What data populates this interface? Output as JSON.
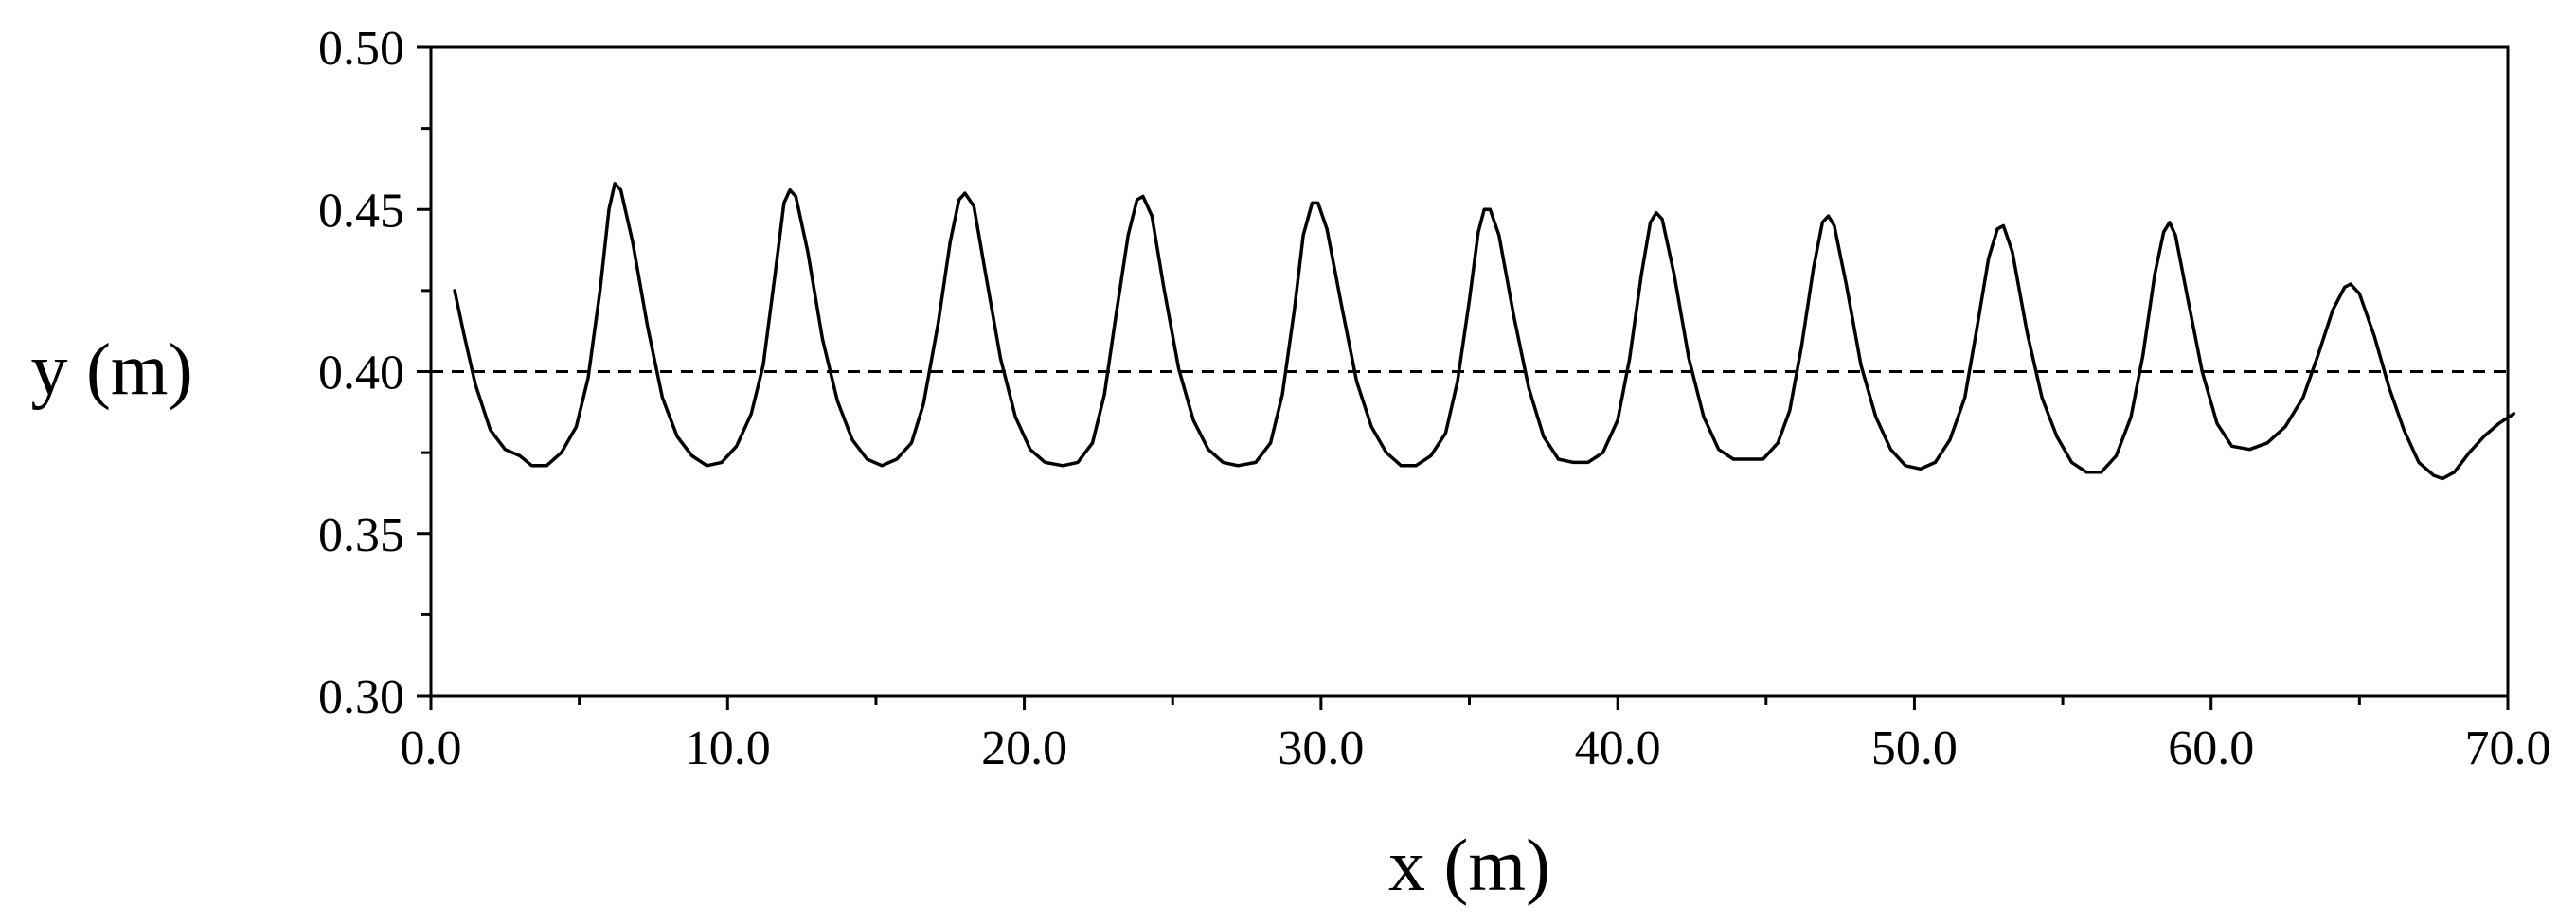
{
  "chart_data": {
    "type": "line",
    "xlabel": "x (m)",
    "ylabel": "y (m)",
    "xlim": [
      0,
      70
    ],
    "ylim": [
      0.3,
      0.5
    ],
    "x_ticks": [
      "0.0",
      "10.0",
      "20.0",
      "30.0",
      "40.0",
      "50.0",
      "60.0",
      "70.0"
    ],
    "y_ticks": [
      "0.30",
      "0.35",
      "0.40",
      "0.45",
      "0.50"
    ],
    "x_minor_step": 5,
    "y_minor_step": 0.025,
    "grid": false,
    "reference_line": {
      "y": 0.4,
      "style": "dashed"
    },
    "series": [
      {
        "style": "solid",
        "color": "#000000",
        "points": [
          [
            0.8,
            0.425
          ],
          [
            1.1,
            0.412
          ],
          [
            1.5,
            0.396
          ],
          [
            2.0,
            0.382
          ],
          [
            2.5,
            0.376
          ],
          [
            3.0,
            0.374
          ],
          [
            3.4,
            0.371
          ],
          [
            3.9,
            0.371
          ],
          [
            4.4,
            0.375
          ],
          [
            4.9,
            0.383
          ],
          [
            5.3,
            0.398
          ],
          [
            5.7,
            0.425
          ],
          [
            6.0,
            0.45
          ],
          [
            6.2,
            0.458
          ],
          [
            6.4,
            0.456
          ],
          [
            6.8,
            0.44
          ],
          [
            7.3,
            0.414
          ],
          [
            7.8,
            0.392
          ],
          [
            8.3,
            0.38
          ],
          [
            8.8,
            0.374
          ],
          [
            9.3,
            0.371
          ],
          [
            9.8,
            0.372
          ],
          [
            10.3,
            0.377
          ],
          [
            10.8,
            0.387
          ],
          [
            11.2,
            0.402
          ],
          [
            11.6,
            0.43
          ],
          [
            11.9,
            0.452
          ],
          [
            12.1,
            0.456
          ],
          [
            12.3,
            0.454
          ],
          [
            12.7,
            0.437
          ],
          [
            13.2,
            0.41
          ],
          [
            13.7,
            0.391
          ],
          [
            14.2,
            0.379
          ],
          [
            14.7,
            0.373
          ],
          [
            15.2,
            0.371
          ],
          [
            15.7,
            0.373
          ],
          [
            16.2,
            0.378
          ],
          [
            16.6,
            0.39
          ],
          [
            17.1,
            0.415
          ],
          [
            17.5,
            0.44
          ],
          [
            17.8,
            0.453
          ],
          [
            18.0,
            0.455
          ],
          [
            18.3,
            0.451
          ],
          [
            18.7,
            0.43
          ],
          [
            19.2,
            0.404
          ],
          [
            19.7,
            0.386
          ],
          [
            20.2,
            0.376
          ],
          [
            20.7,
            0.372
          ],
          [
            21.3,
            0.371
          ],
          [
            21.8,
            0.372
          ],
          [
            22.3,
            0.378
          ],
          [
            22.7,
            0.393
          ],
          [
            23.1,
            0.418
          ],
          [
            23.5,
            0.442
          ],
          [
            23.8,
            0.453
          ],
          [
            24.0,
            0.454
          ],
          [
            24.3,
            0.448
          ],
          [
            24.7,
            0.426
          ],
          [
            25.2,
            0.401
          ],
          [
            25.7,
            0.385
          ],
          [
            26.2,
            0.376
          ],
          [
            26.7,
            0.372
          ],
          [
            27.2,
            0.371
          ],
          [
            27.8,
            0.372
          ],
          [
            28.3,
            0.378
          ],
          [
            28.7,
            0.393
          ],
          [
            29.1,
            0.419
          ],
          [
            29.4,
            0.442
          ],
          [
            29.7,
            0.452
          ],
          [
            29.9,
            0.452
          ],
          [
            30.2,
            0.444
          ],
          [
            30.7,
            0.42
          ],
          [
            31.2,
            0.397
          ],
          [
            31.7,
            0.383
          ],
          [
            32.2,
            0.375
          ],
          [
            32.7,
            0.371
          ],
          [
            33.2,
            0.371
          ],
          [
            33.7,
            0.374
          ],
          [
            34.2,
            0.381
          ],
          [
            34.6,
            0.397
          ],
          [
            35.0,
            0.422
          ],
          [
            35.3,
            0.443
          ],
          [
            35.5,
            0.45
          ],
          [
            35.7,
            0.45
          ],
          [
            36.0,
            0.442
          ],
          [
            36.5,
            0.417
          ],
          [
            37.0,
            0.395
          ],
          [
            37.5,
            0.38
          ],
          [
            38.0,
            0.373
          ],
          [
            38.5,
            0.372
          ],
          [
            39.0,
            0.372
          ],
          [
            39.5,
            0.375
          ],
          [
            40.0,
            0.385
          ],
          [
            40.4,
            0.404
          ],
          [
            40.8,
            0.43
          ],
          [
            41.1,
            0.446
          ],
          [
            41.3,
            0.449
          ],
          [
            41.5,
            0.447
          ],
          [
            41.9,
            0.43
          ],
          [
            42.4,
            0.404
          ],
          [
            42.9,
            0.386
          ],
          [
            43.4,
            0.376
          ],
          [
            43.9,
            0.373
          ],
          [
            44.4,
            0.373
          ],
          [
            44.9,
            0.373
          ],
          [
            45.4,
            0.378
          ],
          [
            45.8,
            0.388
          ],
          [
            46.2,
            0.408
          ],
          [
            46.6,
            0.432
          ],
          [
            46.9,
            0.446
          ],
          [
            47.1,
            0.448
          ],
          [
            47.3,
            0.445
          ],
          [
            47.7,
            0.427
          ],
          [
            48.2,
            0.402
          ],
          [
            48.7,
            0.386
          ],
          [
            49.2,
            0.376
          ],
          [
            49.7,
            0.371
          ],
          [
            50.2,
            0.37
          ],
          [
            50.7,
            0.372
          ],
          [
            51.2,
            0.379
          ],
          [
            51.7,
            0.392
          ],
          [
            52.1,
            0.413
          ],
          [
            52.5,
            0.435
          ],
          [
            52.8,
            0.444
          ],
          [
            53.0,
            0.445
          ],
          [
            53.3,
            0.437
          ],
          [
            53.8,
            0.412
          ],
          [
            54.3,
            0.392
          ],
          [
            54.8,
            0.38
          ],
          [
            55.3,
            0.372
          ],
          [
            55.8,
            0.369
          ],
          [
            56.3,
            0.369
          ],
          [
            56.8,
            0.374
          ],
          [
            57.3,
            0.386
          ],
          [
            57.7,
            0.405
          ],
          [
            58.1,
            0.43
          ],
          [
            58.4,
            0.443
          ],
          [
            58.6,
            0.446
          ],
          [
            58.8,
            0.442
          ],
          [
            59.2,
            0.423
          ],
          [
            59.7,
            0.4
          ],
          [
            60.2,
            0.384
          ],
          [
            60.7,
            0.377
          ],
          [
            61.3,
            0.376
          ],
          [
            61.9,
            0.378
          ],
          [
            62.5,
            0.383
          ],
          [
            63.1,
            0.392
          ],
          [
            63.6,
            0.405
          ],
          [
            64.1,
            0.419
          ],
          [
            64.5,
            0.426
          ],
          [
            64.7,
            0.427
          ],
          [
            65.0,
            0.424
          ],
          [
            65.5,
            0.411
          ],
          [
            66.0,
            0.395
          ],
          [
            66.5,
            0.382
          ],
          [
            67.0,
            0.372
          ],
          [
            67.5,
            0.368
          ],
          [
            67.8,
            0.367
          ],
          [
            68.2,
            0.369
          ],
          [
            68.7,
            0.375
          ],
          [
            69.2,
            0.38
          ],
          [
            69.7,
            0.384
          ],
          [
            70.2,
            0.387
          ]
        ]
      }
    ]
  }
}
